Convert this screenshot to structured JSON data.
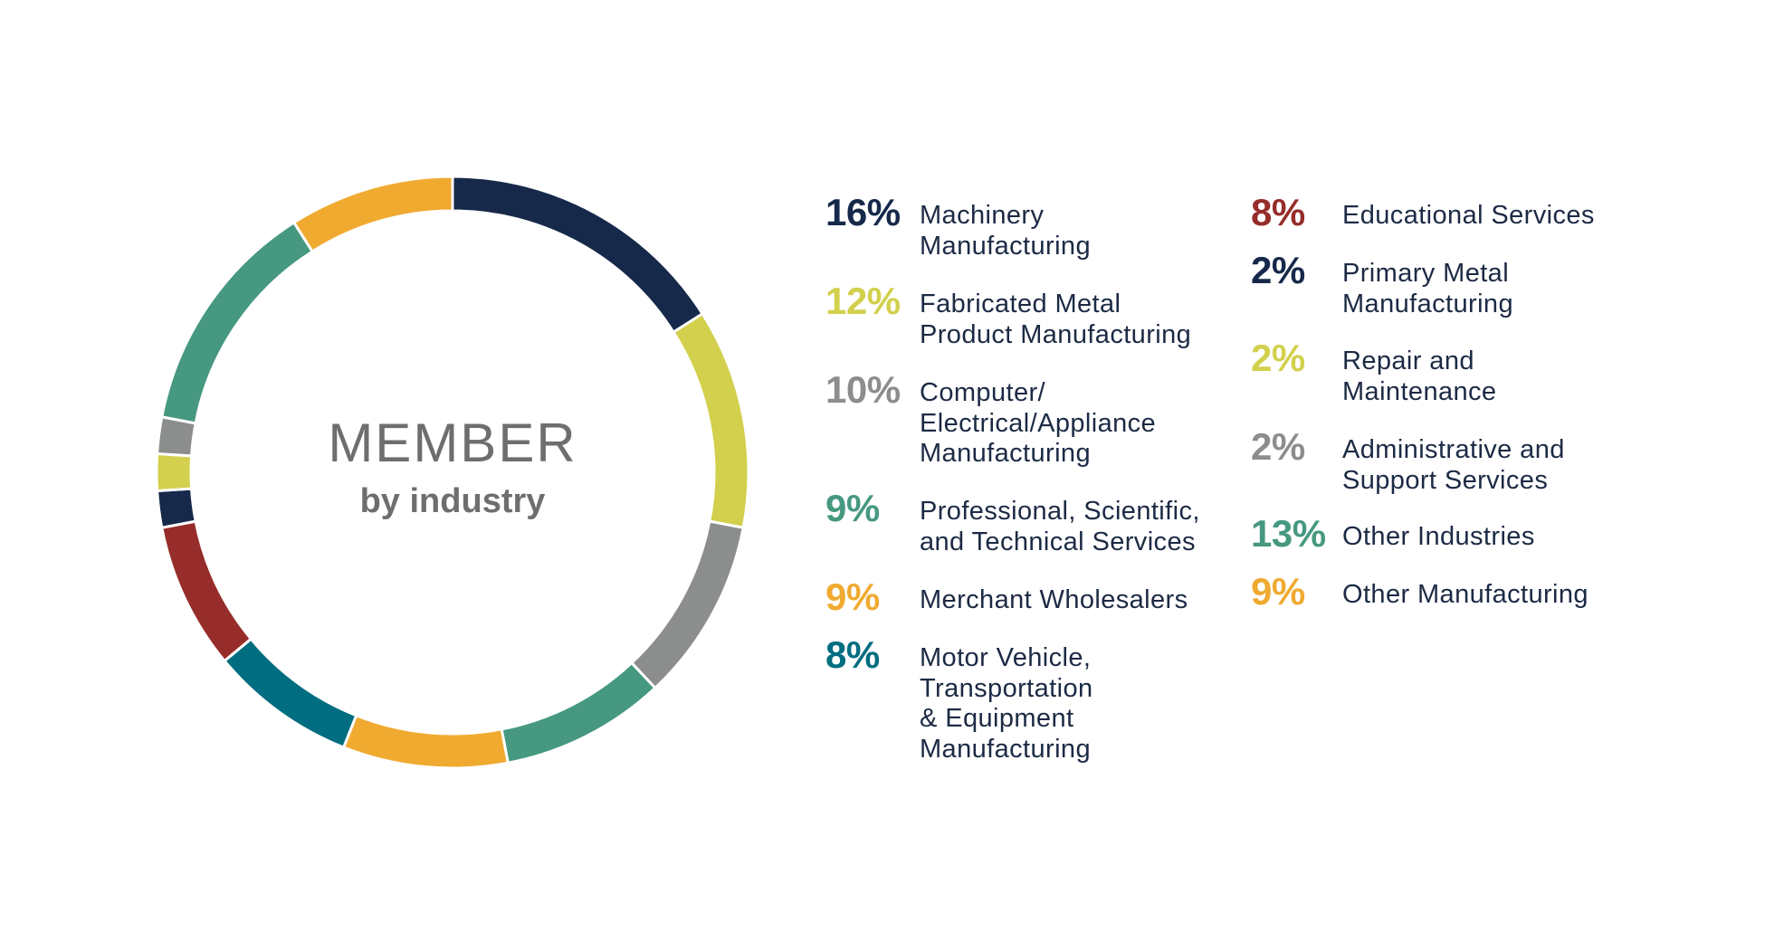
{
  "center": {
    "title": "MEMBER",
    "subtitle": "by industry"
  },
  "chart_data": {
    "type": "pie",
    "title": "MEMBER by industry",
    "slices": [
      {
        "label": "Machinery Manufacturing",
        "pct_label": "16%",
        "value": 16,
        "color": "#16294a"
      },
      {
        "label": "Fabricated Metal Product Manufacturing",
        "pct_label": "12%",
        "value": 12,
        "color": "#d2d04c"
      },
      {
        "label": "Computer/ Electrical/Appliance Manufacturing",
        "pct_label": "10%",
        "value": 10,
        "color": "#8c8e8d"
      },
      {
        "label": "Professional, Scientific, and Technical Services",
        "pct_label": "9%",
        "value": 9,
        "color": "#469880"
      },
      {
        "label": "Merchant Wholesalers",
        "pct_label": "9%",
        "value": 9,
        "color": "#f0aa30"
      },
      {
        "label": "Motor Vehicle, Transportation & Equipment Manufacturing",
        "pct_label": "8%",
        "value": 8,
        "color": "#016d80"
      },
      {
        "label": "Educational Services",
        "pct_label": "8%",
        "value": 8,
        "color": "#962d2a"
      },
      {
        "label": "Primary Metal Manufacturing",
        "pct_label": "2%",
        "value": 2,
        "color": "#16294a"
      },
      {
        "label": "Repair and Maintenance",
        "pct_label": "2%",
        "value": 2,
        "color": "#d2d04c"
      },
      {
        "label": "Administrative and Support Services",
        "pct_label": "2%",
        "value": 2,
        "color": "#8c8e8d"
      },
      {
        "label": "Other Industries",
        "pct_label": "13%",
        "value": 13,
        "color": "#469880"
      },
      {
        "label": "Other Manufacturing",
        "pct_label": "9%",
        "value": 9,
        "color": "#f0aa30"
      }
    ]
  },
  "legend": {
    "left": [
      {
        "pct": "16%",
        "lines": [
          "Machinery",
          "Manufacturing"
        ],
        "color": "#16294a"
      },
      {
        "pct": "12%",
        "lines": [
          "Fabricated Metal",
          "Product Manufacturing"
        ],
        "color": "#d2d04c"
      },
      {
        "pct": "10%",
        "lines": [
          "Computer/",
          "Electrical/Appliance",
          "Manufacturing"
        ],
        "color": "#8c8e8d"
      },
      {
        "pct": "9%",
        "lines": [
          "Professional, Scientific,",
          "and Technical Services"
        ],
        "color": "#469880"
      },
      {
        "pct": "9%",
        "lines": [
          "Merchant Wholesalers"
        ],
        "color": "#f0aa30"
      },
      {
        "pct": "8%",
        "lines": [
          "Motor Vehicle,",
          "Transportation",
          "& Equipment",
          "Manufacturing"
        ],
        "color": "#016d80"
      }
    ],
    "right": [
      {
        "pct": "8%",
        "lines": [
          "Educational Services"
        ],
        "color": "#962d2a"
      },
      {
        "pct": "2%",
        "lines": [
          "Primary Metal",
          "Manufacturing"
        ],
        "color": "#16294a"
      },
      {
        "pct": "2%",
        "lines": [
          "Repair and",
          "Maintenance"
        ],
        "color": "#d2d04c"
      },
      {
        "pct": "2%",
        "lines": [
          "Administrative and",
          "Support Services"
        ],
        "color": "#8c8e8d"
      },
      {
        "pct": "13%",
        "lines": [
          "Other Industries"
        ],
        "color": "#469880"
      },
      {
        "pct": "9%",
        "lines": [
          "Other Manufacturing"
        ],
        "color": "#f0aa30"
      }
    ]
  }
}
